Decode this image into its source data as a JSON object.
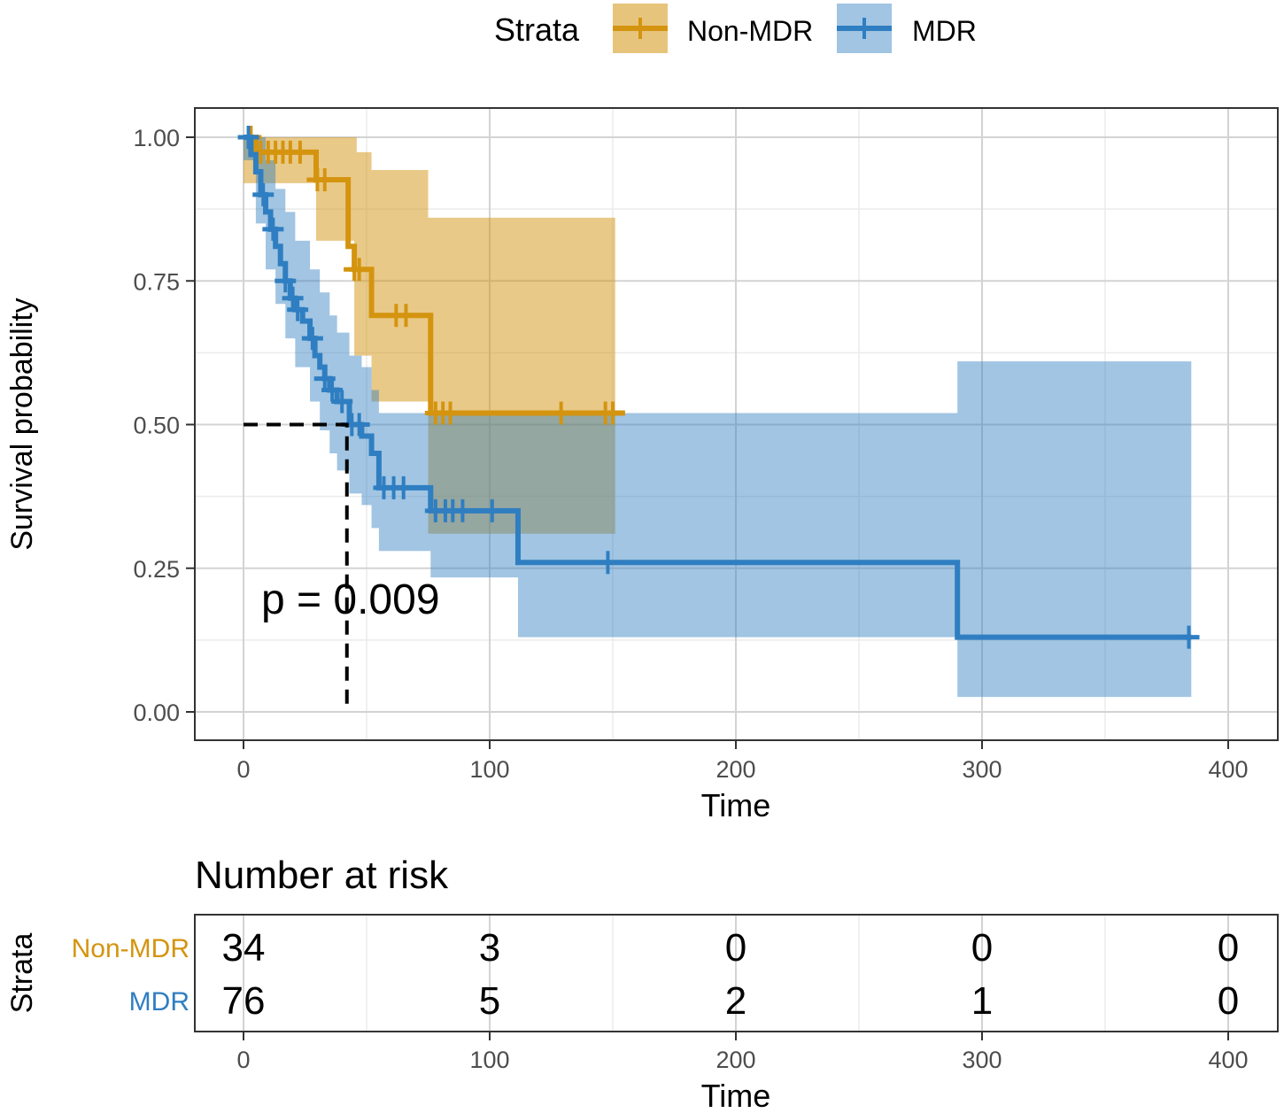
{
  "chart_data": {
    "type": "line",
    "subtype": "kaplan-meier",
    "xlabel": "Time",
    "ylabel": "Survival probability",
    "xlim": [
      -20,
      420
    ],
    "ylim": [
      -0.05,
      1.05
    ],
    "xticks": [
      0,
      100,
      200,
      300,
      400
    ],
    "yticks": [
      "0.00",
      "0.25",
      "0.50",
      "0.75",
      "1.00"
    ],
    "grid": true,
    "legend": {
      "title": "Strata",
      "placement": "top",
      "entries": [
        "Non-MDR",
        "MDR"
      ]
    },
    "annotation": "p = 0.009",
    "median_line": {
      "time": 42,
      "survival": 0.5
    },
    "series": [
      {
        "name": "Non-MDR",
        "color": "#D4940F",
        "steps": [
          [
            0,
            1.0
          ],
          [
            5,
            0.974
          ],
          [
            29.5,
            0.926
          ],
          [
            42.5,
            0.81
          ],
          [
            45,
            0.77
          ],
          [
            52,
            0.69
          ],
          [
            76,
            0.52
          ],
          [
            155,
            0.52
          ]
        ],
        "ci": [
          [
            0,
            0.92,
            1.0
          ],
          [
            29.5,
            0.82,
            1.0
          ],
          [
            45,
            0.62,
            1.0
          ],
          [
            46,
            0.62,
            0.974
          ],
          [
            52,
            0.54,
            0.943
          ],
          [
            75,
            0.31,
            0.86
          ],
          [
            151,
            0.31,
            0.86
          ]
        ],
        "censor": [
          3,
          7,
          10,
          13,
          16,
          19,
          23,
          30,
          33,
          45,
          47,
          62,
          66,
          78,
          81,
          84,
          129,
          147,
          150
        ]
      },
      {
        "name": "MDR",
        "color": "#2F7EC1",
        "steps": [
          [
            0,
            1.0
          ],
          [
            3,
            0.97
          ],
          [
            5,
            0.94
          ],
          [
            7,
            0.9
          ],
          [
            9,
            0.87
          ],
          [
            11,
            0.84
          ],
          [
            13,
            0.81
          ],
          [
            15,
            0.78
          ],
          [
            17,
            0.75
          ],
          [
            19,
            0.72
          ],
          [
            21,
            0.7
          ],
          [
            24,
            0.68
          ],
          [
            27,
            0.65
          ],
          [
            29,
            0.62
          ],
          [
            31,
            0.6
          ],
          [
            33,
            0.58
          ],
          [
            35,
            0.56
          ],
          [
            38,
            0.54
          ],
          [
            43,
            0.5
          ],
          [
            48,
            0.48
          ],
          [
            52,
            0.45
          ],
          [
            55,
            0.39
          ],
          [
            76,
            0.35
          ],
          [
            111.5,
            0.26
          ],
          [
            290,
            0.13
          ],
          [
            385,
            0.13
          ]
        ],
        "ci": [
          [
            0,
            0.96,
            1.0
          ],
          [
            5,
            0.85,
            1.0
          ],
          [
            9,
            0.77,
            0.96
          ],
          [
            13,
            0.71,
            0.91
          ],
          [
            17,
            0.65,
            0.87
          ],
          [
            21,
            0.6,
            0.82
          ],
          [
            27,
            0.54,
            0.77
          ],
          [
            31,
            0.49,
            0.73
          ],
          [
            35,
            0.45,
            0.69
          ],
          [
            38,
            0.42,
            0.66
          ],
          [
            43,
            0.38,
            0.62
          ],
          [
            48,
            0.36,
            0.6
          ],
          [
            52,
            0.32,
            0.56
          ],
          [
            55,
            0.28,
            0.52
          ],
          [
            76,
            0.234,
            0.52
          ],
          [
            111.5,
            0.13,
            0.52
          ],
          [
            290,
            0.026,
            0.61
          ],
          [
            385,
            0.026,
            0.61
          ]
        ],
        "censor": [
          2,
          8,
          12,
          17,
          20,
          22,
          28,
          33,
          36,
          40,
          44,
          47,
          57,
          61,
          65,
          78,
          82,
          85,
          89,
          101,
          148,
          384
        ]
      }
    ]
  },
  "risk_table": {
    "title": "Number at risk",
    "ylabel": "Strata",
    "xlabel": "Time",
    "times": [
      0,
      100,
      200,
      300,
      400
    ],
    "rows": [
      {
        "name": "Non-MDR",
        "values": [
          "34",
          "3",
          "0",
          "0",
          "0"
        ]
      },
      {
        "name": "MDR",
        "values": [
          "76",
          "5",
          "2",
          "1",
          "0"
        ]
      }
    ]
  }
}
